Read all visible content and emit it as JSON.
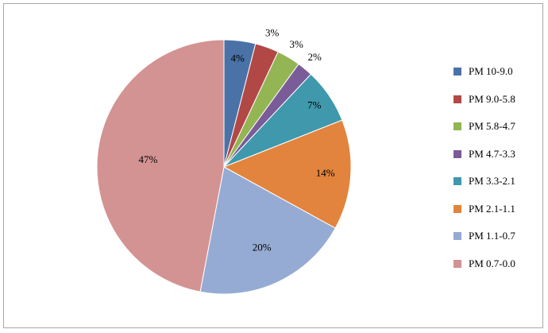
{
  "chart_data": {
    "type": "pie",
    "categories": [
      "PM 10-9.0",
      "PM 9.0-5.8",
      "PM 5.8-4.7",
      "PM 4.7-3.3",
      "PM 3.3-2.1",
      "PM 2.1-1.1",
      "PM 1.1-0.7",
      "PM 0.7-0.0"
    ],
    "values": [
      4,
      3,
      3,
      2,
      7,
      14,
      20,
      47
    ],
    "data_labels": [
      "4%",
      "3%",
      "3%",
      "2%",
      "7%",
      "14%",
      "20%",
      "47%"
    ],
    "colors": [
      "#4a72a6",
      "#b24846",
      "#93b553",
      "#7a5c99",
      "#3f98ab",
      "#e2843d",
      "#96abd3",
      "#d39392"
    ],
    "legend_position": "right",
    "start_angle": "12 o'clock, clockwise"
  }
}
